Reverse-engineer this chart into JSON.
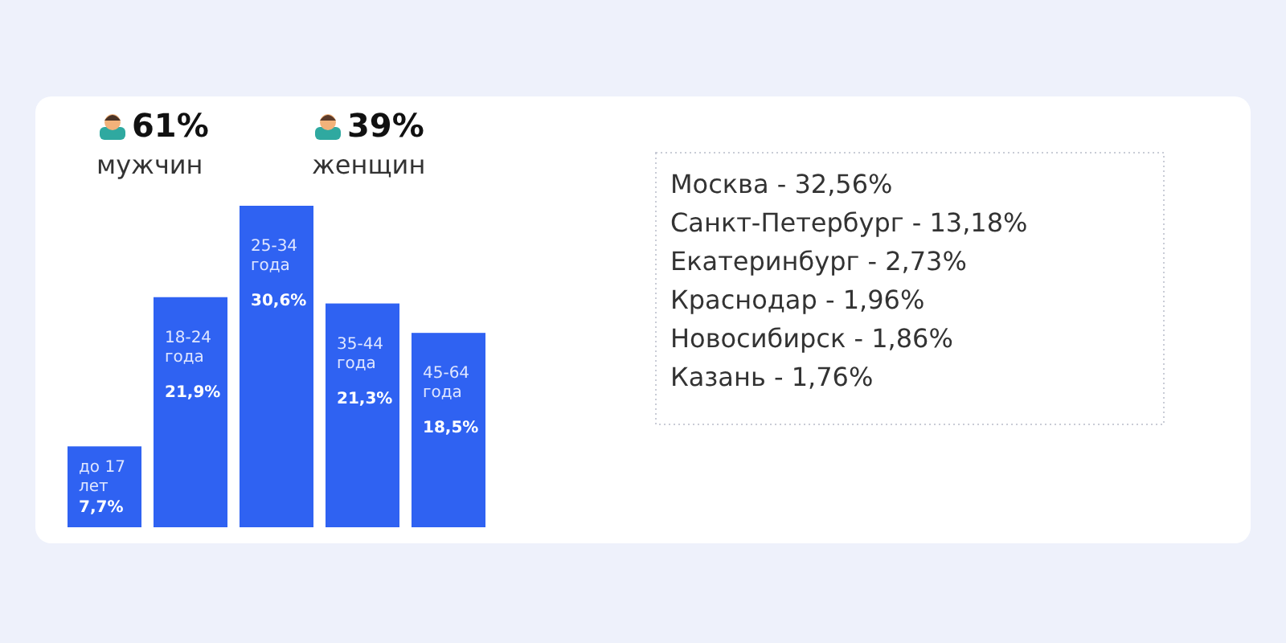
{
  "chart_data": {
    "type": "bar",
    "relative": false,
    "categories": [
      "до 17 лет",
      "18-24 года",
      "25-34 года",
      "35-44 года",
      "45-64 года"
    ],
    "values": [
      7.7,
      21.9,
      30.6,
      21.3,
      18.5
    ],
    "value_labels": [
      "7,7%",
      "21,9%",
      "30,6%",
      "21,3%",
      "18,5%"
    ],
    "color": "#2f62f2",
    "annotations": [
      "61%",
      "мужчин",
      "39%",
      "женщин",
      "Москва - 32,56%",
      "Санкт-Петербург - 13,18%",
      "Екатеринбург - 2,73%",
      "Краснодар - 1,96%",
      "Новосибирск - 1,86%",
      "Казань - 1,76%"
    ]
  }
}
